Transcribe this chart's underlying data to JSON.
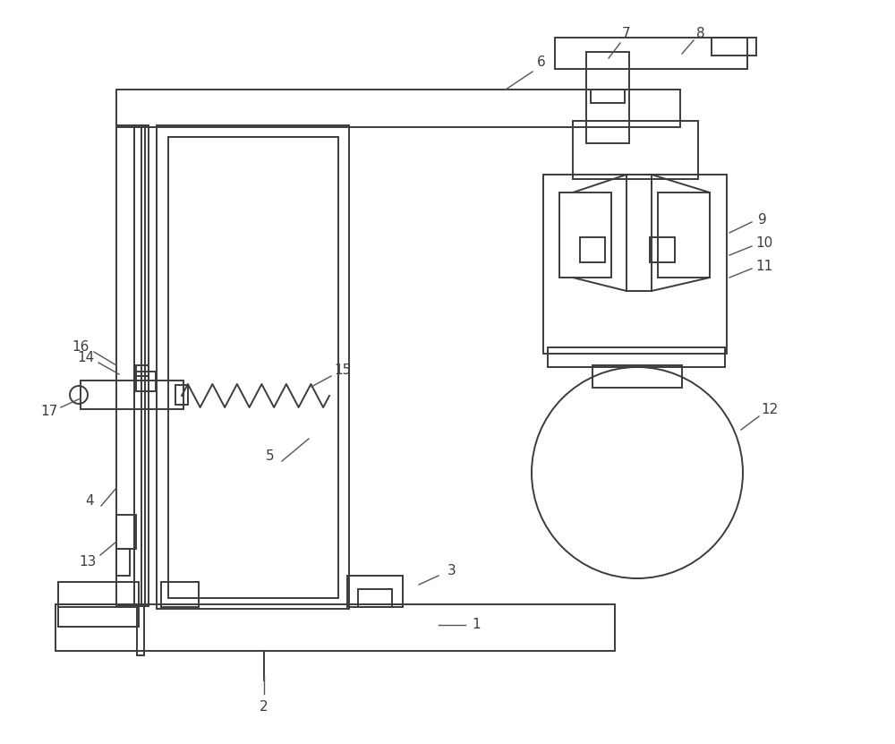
{
  "bg_color": "#ffffff",
  "line_color": "#3c3c3c",
  "label_color": "#3c3c3c",
  "ann_color": "#555555",
  "figsize": [
    10.0,
    8.31
  ],
  "dpi": 100,
  "lw": 1.4,
  "ann_lw": 1.0,
  "fontsize": 11
}
